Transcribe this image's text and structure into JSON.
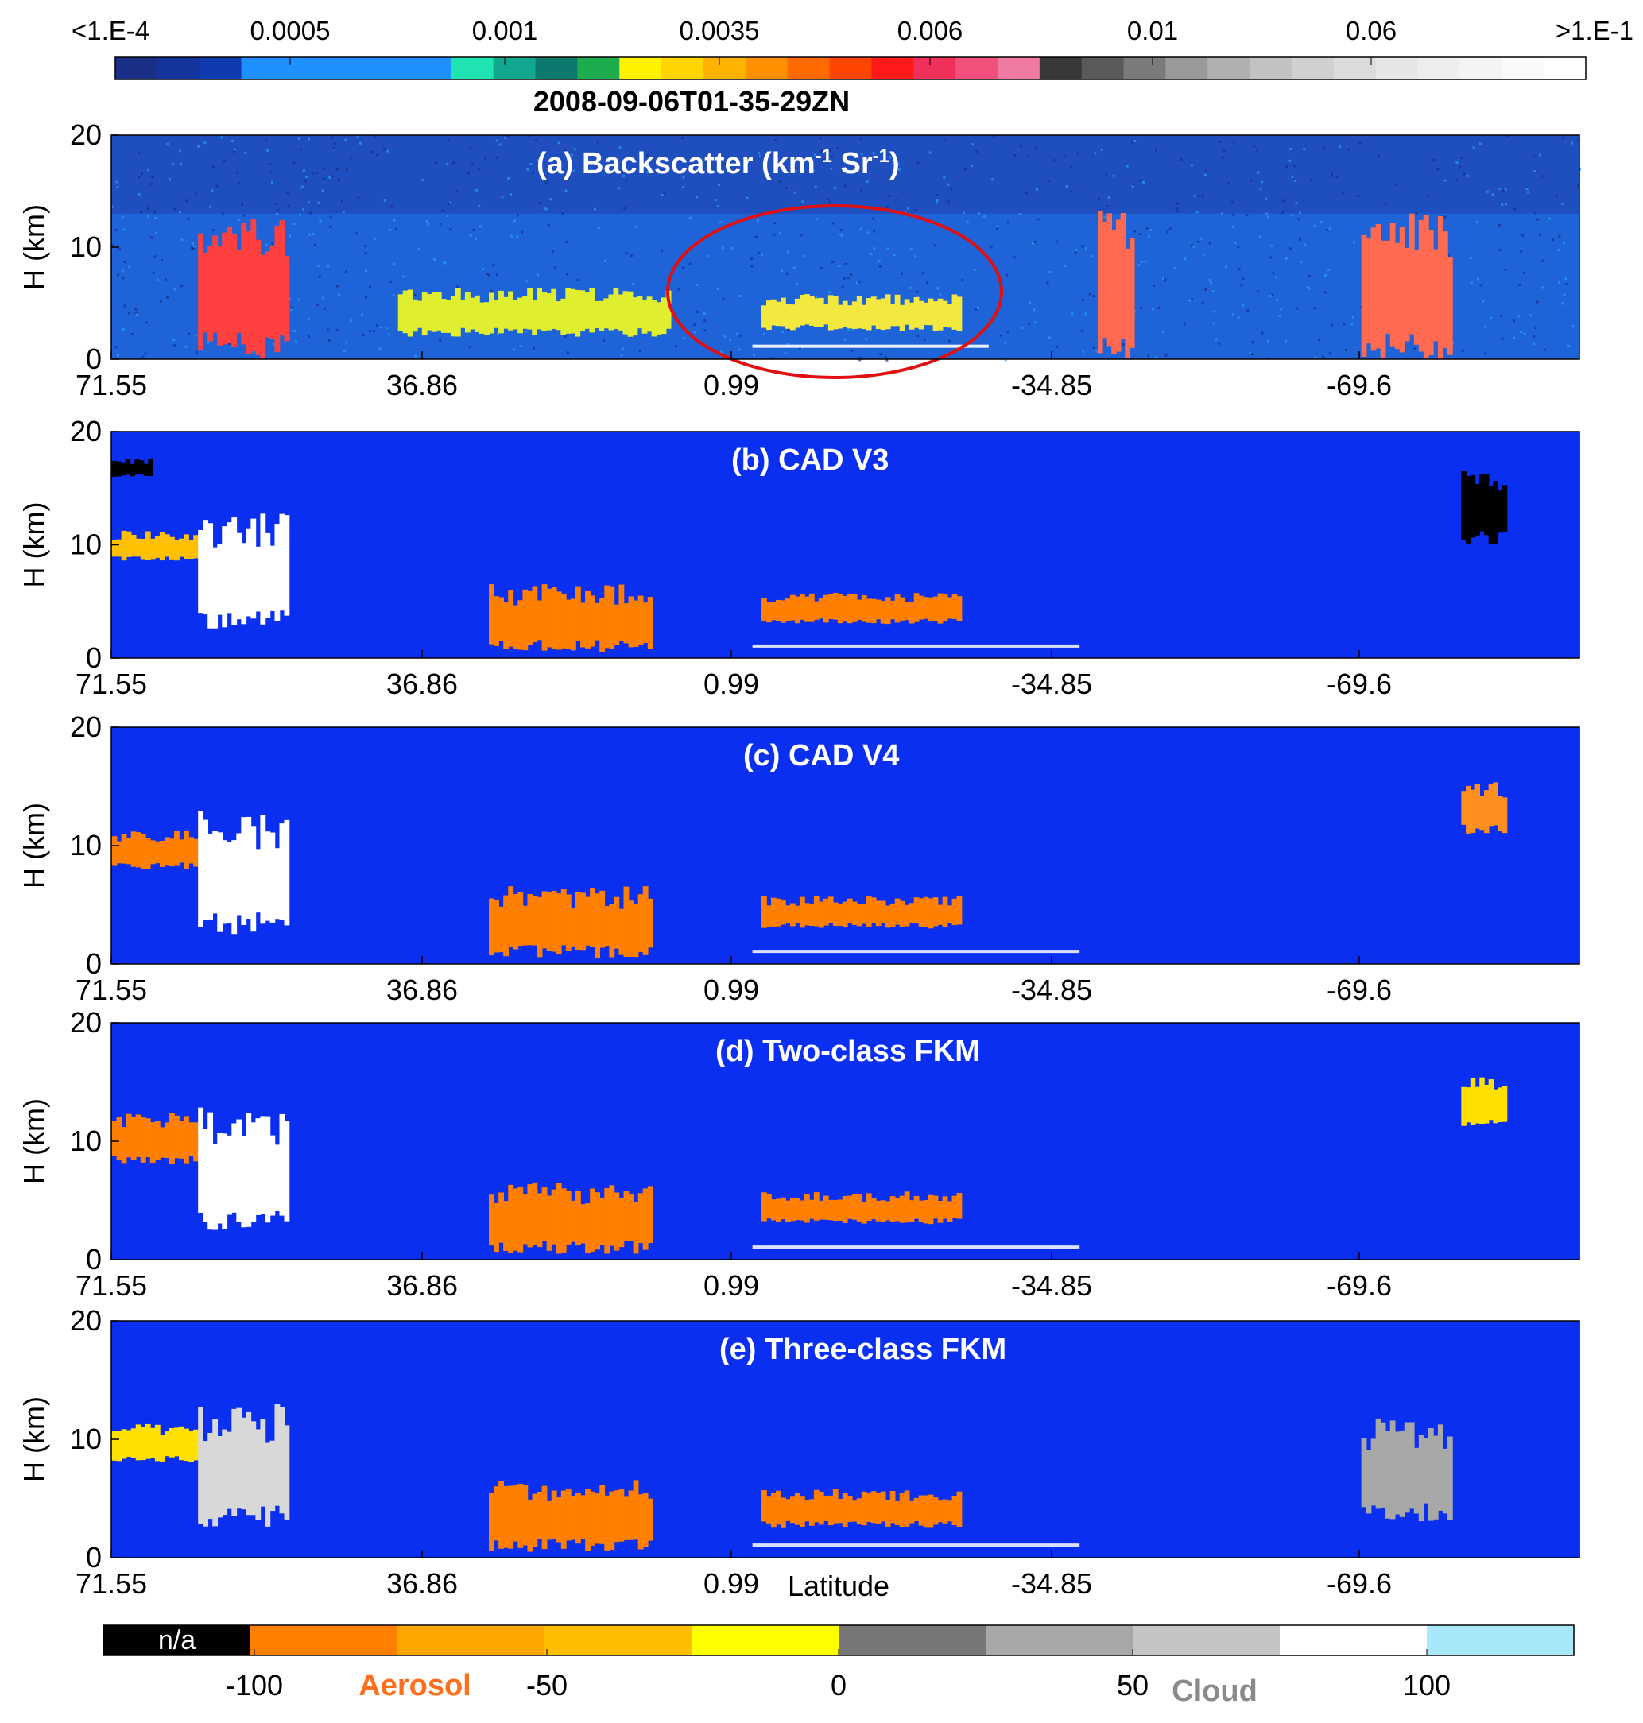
{
  "top_colorbar": {
    "tick_labels": [
      "<1.E-4",
      "0.0005",
      "0.001",
      "0.0035",
      "0.006",
      "0.01",
      "0.06",
      ">1.E-1"
    ],
    "colors": [
      "#1a2f86",
      "#13349c",
      "#0e3bb0",
      "#1e90ff",
      "#1e90ff",
      "#1e90ff",
      "#1e90ff",
      "#1e90ff",
      "#20e3b2",
      "#11a88f",
      "#0b7a6d",
      "#1dad4f",
      "#fff200",
      "#ffd400",
      "#ffb300",
      "#ff9000",
      "#ff6a00",
      "#ff4500",
      "#ff1a1a",
      "#f0305a",
      "#f0507a",
      "#f07aa0",
      "#383838",
      "#5a5a5a",
      "#7a7a7a",
      "#999999",
      "#b0b0b0",
      "#c2c2c2",
      "#d0d0d0",
      "#dcdcdc",
      "#e6e6e6",
      "#eeeeee",
      "#f4f4f4",
      "#fafafa",
      "#ffffff"
    ]
  },
  "date_label": "2008-09-06T01-35-29ZN",
  "chart_data": [
    {
      "type": "heatmap",
      "title": "(a) Backscatter (km",
      "title_exp": "-1",
      "title_mid": " Sr",
      "title_end": ")",
      "ylabel": "H (km)",
      "ylim": [
        0,
        20
      ],
      "yticks": [
        "0",
        "10",
        "20"
      ],
      "xticks": [
        "71.55",
        "36.86",
        "0.99",
        "-34.85",
        "-69.6"
      ],
      "annotation": "red ellipse highlighting elevated aerosol layer near 0.99",
      "features": [
        {
          "class": "aerosol",
          "lat": [
            40,
            10
          ],
          "h": [
            2,
            6
          ],
          "color": "#e0ee30"
        },
        {
          "class": "aerosol",
          "lat": [
            0,
            -22
          ],
          "h": [
            2.5,
            5.5
          ],
          "color": "#f2e840"
        },
        {
          "class": "cloud",
          "lat": [
            62,
            52
          ],
          "h": [
            0,
            12
          ],
          "color": "#ff4040"
        },
        {
          "class": "cloud",
          "lat": [
            -37,
            -41
          ],
          "h": [
            0,
            12
          ],
          "color": "#ff6a50"
        },
        {
          "class": "cloud",
          "lat": [
            -66,
            -76
          ],
          "h": [
            0,
            12
          ],
          "color": "#ff6a50"
        }
      ]
    },
    {
      "type": "heatmap",
      "title": "(b) CAD V3",
      "ylabel": "H (km)",
      "ylim": [
        0,
        20
      ],
      "yticks": [
        "0",
        "10",
        "20"
      ],
      "xticks": [
        "71.55",
        "36.86",
        "0.99",
        "-34.85",
        "-69.6"
      ],
      "features": [
        {
          "class": "na",
          "lat": [
            71.5,
            67
          ],
          "h": [
            16,
            17.5
          ],
          "color": "#000000"
        },
        {
          "class": "aerosol",
          "lat": [
            71.5,
            62
          ],
          "h": [
            8.5,
            11
          ],
          "color": "#ffc000"
        },
        {
          "class": "cloud",
          "lat": [
            62,
            52
          ],
          "h": [
            2.5,
            12
          ],
          "color": "#ffffff"
        },
        {
          "class": "aerosol",
          "lat": [
            30,
            12
          ],
          "h": [
            0.5,
            6
          ],
          "color": "#ff7f00"
        },
        {
          "class": "aerosol",
          "lat": [
            0,
            -22
          ],
          "h": [
            3,
            5.5
          ],
          "color": "#ff7f00"
        },
        {
          "class": "na",
          "lat": [
            -77,
            -82
          ],
          "h": [
            10,
            16
          ],
          "color": "#000000"
        }
      ]
    },
    {
      "type": "heatmap",
      "title": "(c) CAD V4",
      "ylabel": "H (km)",
      "ylim": [
        0,
        20
      ],
      "yticks": [
        "0",
        "10",
        "20"
      ],
      "xticks": [
        "71.55",
        "36.86",
        "0.99",
        "-34.85",
        "-69.6"
      ],
      "features": [
        {
          "class": "aerosol",
          "lat": [
            71.5,
            62
          ],
          "h": [
            8,
            11
          ],
          "color": "#ff7f00"
        },
        {
          "class": "cloud",
          "lat": [
            62,
            52
          ],
          "h": [
            2.5,
            12
          ],
          "color": "#ffffff"
        },
        {
          "class": "aerosol",
          "lat": [
            30,
            12
          ],
          "h": [
            0.5,
            6
          ],
          "color": "#ff7f00"
        },
        {
          "class": "aerosol",
          "lat": [
            0,
            -22
          ],
          "h": [
            3,
            5.5
          ],
          "color": "#ff7f00"
        },
        {
          "class": "aerosol",
          "lat": [
            -77,
            -82
          ],
          "h": [
            11,
            15
          ],
          "color": "#ff9020"
        }
      ]
    },
    {
      "type": "heatmap",
      "title": "(d) Two-class FKM",
      "ylabel": "H (km)",
      "ylim": [
        0,
        20
      ],
      "yticks": [
        "0",
        "10",
        "20"
      ],
      "xticks": [
        "71.55",
        "36.86",
        "0.99",
        "-34.85",
        "-69.6"
      ],
      "features": [
        {
          "class": "aerosol",
          "lat": [
            71.5,
            62
          ],
          "h": [
            8,
            12
          ],
          "color": "#ff7f00"
        },
        {
          "class": "cloud",
          "lat": [
            62,
            52
          ],
          "h": [
            2.5,
            12
          ],
          "color": "#ffffff"
        },
        {
          "class": "aerosol",
          "lat": [
            30,
            12
          ],
          "h": [
            0.5,
            6
          ],
          "color": "#ff7f00"
        },
        {
          "class": "aerosol",
          "lat": [
            0,
            -22
          ],
          "h": [
            3,
            5.5
          ],
          "color": "#ff7f00"
        },
        {
          "class": "aerosol",
          "lat": [
            -77,
            -82
          ],
          "h": [
            11,
            15
          ],
          "color": "#ffe000"
        }
      ]
    },
    {
      "type": "heatmap",
      "title": "(e) Three-class FKM",
      "ylabel": "H (km)",
      "ylim": [
        0,
        20
      ],
      "yticks": [
        "0",
        "10",
        "20"
      ],
      "xticks": [
        "71.55",
        "36.86",
        "0.99",
        "-34.85",
        "-69.6"
      ],
      "xlabel": "Latitude",
      "features": [
        {
          "class": "aerosol",
          "lat": [
            71.5,
            62
          ],
          "h": [
            8,
            11
          ],
          "color": "#ffe000"
        },
        {
          "class": "cloud",
          "lat": [
            62,
            52
          ],
          "h": [
            2.5,
            12
          ],
          "color": "#d8d8d8"
        },
        {
          "class": "aerosol",
          "lat": [
            30,
            12
          ],
          "h": [
            0.5,
            6
          ],
          "color": "#ff7f00"
        },
        {
          "class": "aerosol",
          "lat": [
            0,
            -22
          ],
          "h": [
            2.5,
            5.5
          ],
          "color": "#ff7f00"
        },
        {
          "class": "cloud",
          "lat": [
            -66,
            -76
          ],
          "h": [
            3,
            11
          ],
          "color": "#a8a8a8"
        }
      ]
    }
  ],
  "bottom_colorbar": {
    "na_label": "n/a",
    "tick_labels": [
      "-100",
      "-50",
      "0",
      "50",
      "100"
    ],
    "aerosol_label": "Aerosol",
    "cloud_label": "Cloud",
    "colors": [
      "#000000",
      "#ff7f00",
      "#ffa500",
      "#ffbf00",
      "#ffff00",
      "#777777",
      "#a8a8a8",
      "#c4c4c4",
      "#ffffff",
      "#a8e6fa"
    ]
  },
  "colors": {
    "background_blue": "#0a2ff0",
    "highlight_ellipse": "#e01010"
  }
}
